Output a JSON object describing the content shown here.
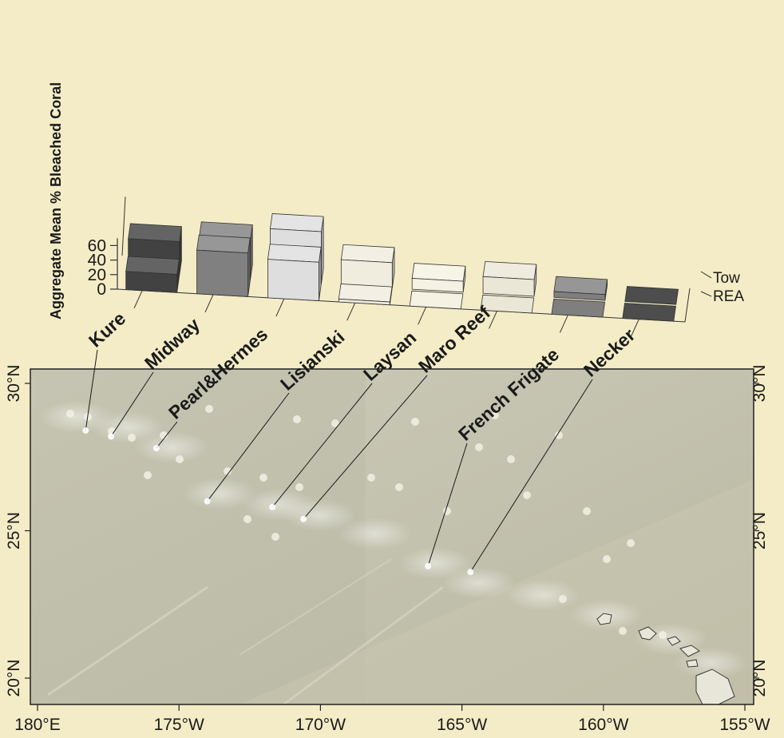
{
  "chart_data": {
    "type": "bar",
    "ylabel": "Aggregate Mean % Bleached Coral",
    "ylim": [
      0,
      70
    ],
    "y_ticks": [
      0,
      20,
      40,
      60
    ],
    "categories": [
      "Kure",
      "Midway",
      "Pearl&Hermes",
      "Lisianski",
      "Laysan",
      "Maro Reef",
      "French Frigate",
      "Necker"
    ],
    "series": [
      {
        "name": "REA",
        "values": [
          25,
          60,
          53,
          4,
          0.5,
          0.5,
          0,
          0
        ]
      },
      {
        "name": "Tow",
        "values": [
          47,
          55,
          72,
          35,
          15,
          23,
          8,
          0
        ]
      }
    ],
    "colors": [
      "#424242",
      "#808080",
      "#dedede",
      "#f0ecde",
      "#f5f1e3",
      "#ebe7d7",
      "#7f7f7f",
      "#4d4d4d"
    ],
    "legend_placement": "right"
  },
  "map": {
    "x_ticks": [
      "180°E",
      "175°W",
      "170°W",
      "165°W",
      "160°W",
      "155°W"
    ],
    "y_ticks": [
      "30°N",
      "25°N",
      "20°N"
    ],
    "sites": [
      {
        "name": "Kure",
        "lon": 178.3,
        "lat": 28.4
      },
      {
        "name": "Midway",
        "lon": 177.4,
        "lat": 28.2
      },
      {
        "name": "Pearl&Hermes",
        "lon": 175.8,
        "lat": 27.8
      },
      {
        "name": "Lisianski",
        "lon": 174.0,
        "lat": 26.0
      },
      {
        "name": "Laysan",
        "lon": 171.7,
        "lat": 25.8
      },
      {
        "name": "Maro Reef",
        "lon": 170.6,
        "lat": 25.4
      },
      {
        "name": "French Frigate",
        "lon": 166.2,
        "lat": 23.8
      },
      {
        "name": "Necker",
        "lon": 164.7,
        "lat": 23.6
      }
    ]
  }
}
